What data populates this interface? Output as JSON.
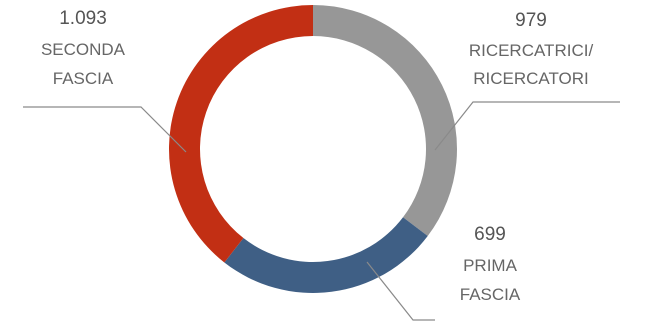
{
  "chart_data": {
    "type": "pie",
    "donut": true,
    "title": "",
    "slices": [
      {
        "value": 979,
        "value_text": "979",
        "label_lines": [
          "RICERCATRICI/",
          "RICERCATORI"
        ],
        "color": "#979797"
      },
      {
        "value": 699,
        "value_text": "699",
        "label_lines": [
          "PRIMA",
          "FASCIA"
        ],
        "color": "#3f5f85"
      },
      {
        "value": 1093,
        "value_text": "1.093",
        "label_lines": [
          "SECONDA",
          "FASCIA"
        ],
        "color": "#c22f14"
      }
    ]
  }
}
